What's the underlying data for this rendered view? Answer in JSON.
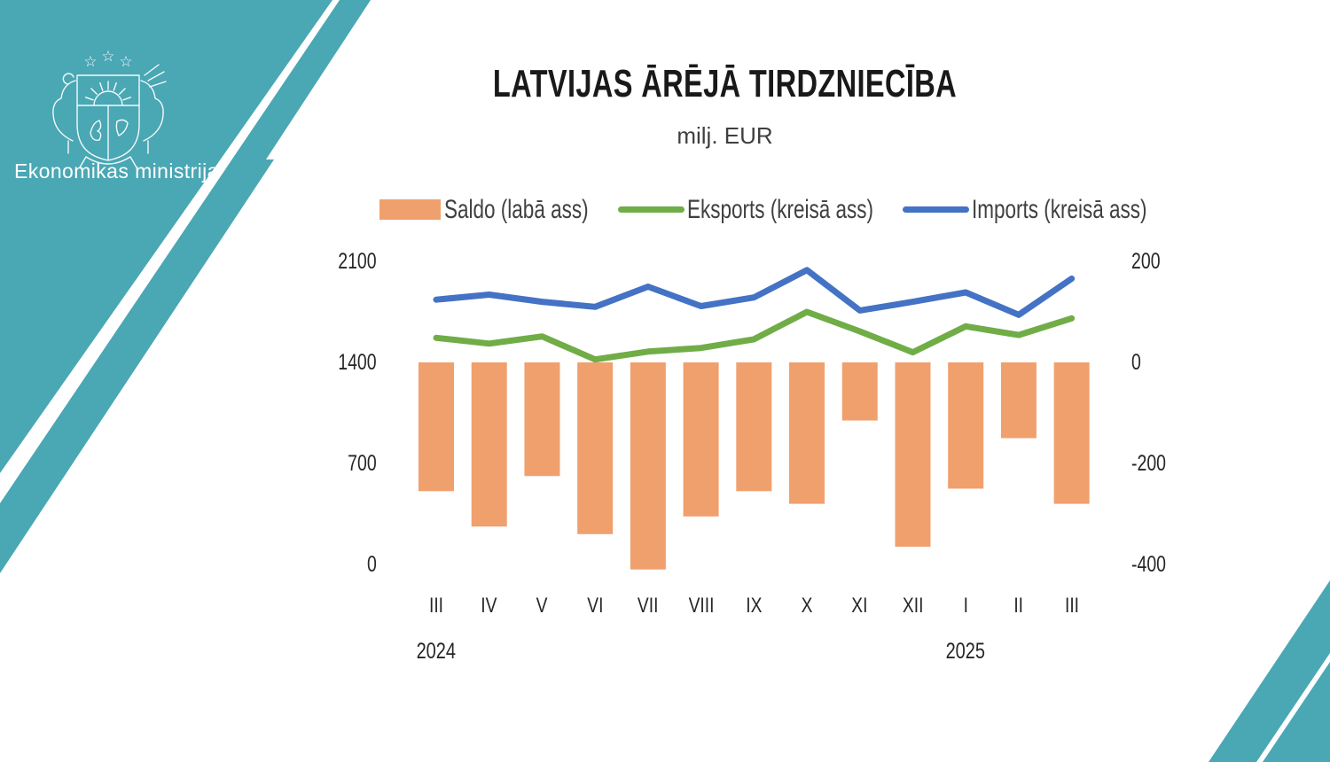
{
  "page": {
    "background": "#ffffff"
  },
  "brand": {
    "teal": "#4AA7B4",
    "ministry_label": "Ekonomikas ministrija",
    "emblem": "latvia-coat-of-arms"
  },
  "chart_data": {
    "type": "bar",
    "title": "LATVIJAS ĀRĒJĀ TIRDZNIECĪBA",
    "subtitle": "milj. EUR",
    "categories": [
      "III",
      "IV",
      "V",
      "VI",
      "VII",
      "VIII",
      "IX",
      "X",
      "XI",
      "XII",
      "I",
      "II",
      "III"
    ],
    "year_labels": [
      {
        "label": "2024",
        "month_index": 0
      },
      {
        "label": "2025",
        "month_index": 10
      }
    ],
    "series": [
      {
        "name": "Saldo (labā ass)",
        "kind": "bar",
        "axis": "right",
        "color": "#F0A06D",
        "values": [
          -255,
          -325,
          -225,
          -340,
          -410,
          -305,
          -255,
          -280,
          -115,
          -365,
          -250,
          -150,
          -280
        ]
      },
      {
        "name": "Eksports (kreisā ass)",
        "kind": "line",
        "axis": "left",
        "color": "#70AD47",
        "values": [
          1570,
          1530,
          1580,
          1420,
          1475,
          1500,
          1560,
          1750,
          1615,
          1470,
          1650,
          1590,
          1705
        ]
      },
      {
        "name": "Imports (kreisā ass)",
        "kind": "line",
        "axis": "left",
        "color": "#4472C4",
        "values": [
          1835,
          1870,
          1820,
          1785,
          1925,
          1790,
          1850,
          2040,
          1760,
          1820,
          1885,
          1730,
          1980
        ]
      }
    ],
    "left_axis": {
      "ticks": [
        2100,
        1400,
        700,
        0
      ]
    },
    "right_axis": {
      "ticks": [
        200,
        0,
        -200,
        -400
      ]
    },
    "legend_position": "top",
    "grid": false
  }
}
